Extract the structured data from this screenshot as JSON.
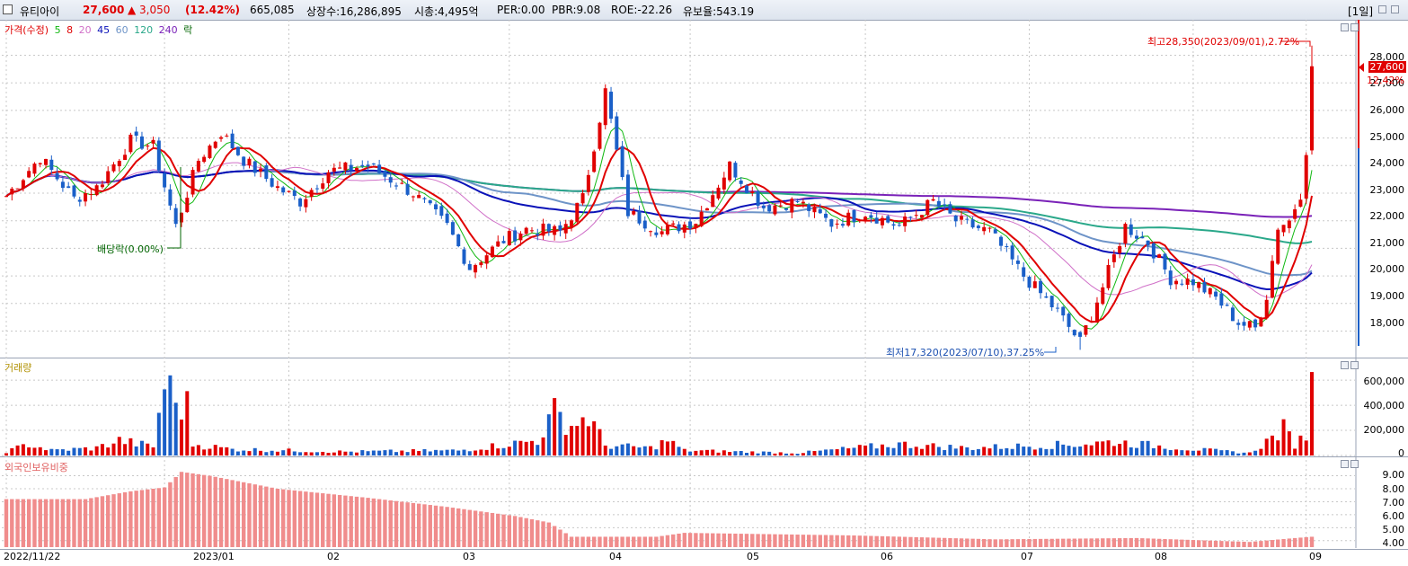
{
  "header": {
    "name": "유티아이",
    "price": "27,600",
    "change": "▲ 3,050",
    "change_pct": "(12.42%)",
    "volume": "665,085",
    "listed_shares": "상장수:16,286,895",
    "market_cap": "시총:4,495억",
    "per": "PER:0.00",
    "pbr": "PBR:9.08",
    "roe": "ROE:-22.26",
    "float_ratio": "유보율:543.19",
    "period": "[1일]"
  },
  "colors": {
    "up": "#e00000",
    "down": "#1a5fc8",
    "ma5": "#11b811",
    "ma8": "#e00000",
    "ma20": "#d070c8",
    "ma45": "#0a12b8",
    "ma60": "#6e94c8",
    "ma120": "#2aa88a",
    "ma240": "#7a22b8",
    "foreign": "#f08c8c"
  },
  "price_panel": {
    "legend": {
      "price": "가격(수정)",
      "ma5": "5",
      "ma8": "8",
      "ma20": "20",
      "ma45": "45",
      "ma60": "60",
      "ma120": "120",
      "ma240": "240",
      "fall": "락"
    },
    "y_ticks": [
      "28,000",
      "27,000",
      "26,000",
      "25,000",
      "24,000",
      "23,000",
      "22,000",
      "21,000",
      "20,000",
      "19,000",
      "18,000"
    ],
    "last_price_tag": "27,600",
    "last_pct_tag": "12.42%",
    "high_annotation": "최고28,350(2023/09/01),2.72%",
    "low_annotation": "최저17,320(2023/07/10),37.25%",
    "dividend_annotation": "배당락(0.00%)"
  },
  "volume_panel": {
    "legend": "거래량",
    "y_ticks": [
      "600,000",
      "400,000",
      "200,000",
      "0"
    ]
  },
  "foreign_panel": {
    "legend": "외국인보유비중",
    "y_ticks": [
      "9.00",
      "8.00",
      "7.00",
      "6.00",
      "5.00",
      "4.00"
    ]
  },
  "x_axis": [
    "2022/11/22",
    "2023/01",
    "02",
    "03",
    "04",
    "05",
    "06",
    "07",
    "08",
    "09"
  ],
  "chart_data": {
    "type": "candlestick",
    "title": "유티아이",
    "price_ylim": [
      17300,
      28700
    ],
    "volume_ylim": [
      0,
      680000
    ],
    "foreign_ylim": [
      3.5,
      9.8
    ],
    "anchors": [
      {
        "i": 0,
        "p": 22900
      },
      {
        "i": 6,
        "p": 24300
      },
      {
        "i": 12,
        "p": 22800
      },
      {
        "i": 16,
        "p": 23200
      },
      {
        "i": 22,
        "p": 24900
      },
      {
        "i": 26,
        "p": 24700
      },
      {
        "i": 30,
        "p": 21800
      },
      {
        "i": 34,
        "p": 24200
      },
      {
        "i": 38,
        "p": 25200
      },
      {
        "i": 42,
        "p": 24200
      },
      {
        "i": 48,
        "p": 23200
      },
      {
        "i": 52,
        "p": 22700
      },
      {
        "i": 57,
        "p": 23800
      },
      {
        "i": 64,
        "p": 24000
      },
      {
        "i": 72,
        "p": 23000
      },
      {
        "i": 78,
        "p": 21800
      },
      {
        "i": 82,
        "p": 20300
      },
      {
        "i": 88,
        "p": 21300
      },
      {
        "i": 92,
        "p": 21700
      },
      {
        "i": 98,
        "p": 21600
      },
      {
        "i": 102,
        "p": 22800
      },
      {
        "i": 106,
        "p": 26700
      },
      {
        "i": 110,
        "p": 22300
      },
      {
        "i": 116,
        "p": 21600
      },
      {
        "i": 122,
        "p": 22000
      },
      {
        "i": 128,
        "p": 24000
      },
      {
        "i": 134,
        "p": 22500
      },
      {
        "i": 140,
        "p": 22700
      },
      {
        "i": 146,
        "p": 21900
      },
      {
        "i": 152,
        "p": 22300
      },
      {
        "i": 158,
        "p": 21800
      },
      {
        "i": 164,
        "p": 22700
      },
      {
        "i": 168,
        "p": 22000
      },
      {
        "i": 174,
        "p": 21600
      },
      {
        "i": 180,
        "p": 20000
      },
      {
        "i": 186,
        "p": 18700
      },
      {
        "i": 190,
        "p": 17600
      },
      {
        "i": 194,
        "p": 19600
      },
      {
        "i": 198,
        "p": 21800
      },
      {
        "i": 202,
        "p": 21200
      },
      {
        "i": 206,
        "p": 19900
      },
      {
        "i": 210,
        "p": 19800
      },
      {
        "i": 214,
        "p": 19200
      },
      {
        "i": 218,
        "p": 18300
      },
      {
        "i": 221,
        "p": 18100
      },
      {
        "i": 223,
        "p": 19300
      },
      {
        "i": 225,
        "p": 21800
      },
      {
        "i": 227,
        "p": 22000
      },
      {
        "i": 229,
        "p": 23000
      },
      {
        "i": 230,
        "p": 24600
      },
      {
        "i": 231,
        "p": 27600
      }
    ],
    "volume_anchors": [
      {
        "i": 0,
        "v": 30000
      },
      {
        "i": 4,
        "v": 90000
      },
      {
        "i": 8,
        "v": 40000
      },
      {
        "i": 16,
        "v": 60000
      },
      {
        "i": 20,
        "v": 120000
      },
      {
        "i": 26,
        "v": 70000
      },
      {
        "i": 28,
        "v": 590000
      },
      {
        "i": 30,
        "v": 420000
      },
      {
        "i": 32,
        "v": 390000
      },
      {
        "i": 33,
        "v": 90000
      },
      {
        "i": 40,
        "v": 50000
      },
      {
        "i": 60,
        "v": 30000
      },
      {
        "i": 80,
        "v": 40000
      },
      {
        "i": 94,
        "v": 120000
      },
      {
        "i": 97,
        "v": 340000
      },
      {
        "i": 100,
        "v": 240000
      },
      {
        "i": 103,
        "v": 310000
      },
      {
        "i": 106,
        "v": 80000
      },
      {
        "i": 114,
        "v": 60000
      },
      {
        "i": 117,
        "v": 120000
      },
      {
        "i": 120,
        "v": 40000
      },
      {
        "i": 140,
        "v": 20000
      },
      {
        "i": 158,
        "v": 90000
      },
      {
        "i": 170,
        "v": 60000
      },
      {
        "i": 190,
        "v": 90000
      },
      {
        "i": 196,
        "v": 110000
      },
      {
        "i": 210,
        "v": 50000
      },
      {
        "i": 220,
        "v": 20000
      },
      {
        "i": 224,
        "v": 140000
      },
      {
        "i": 226,
        "v": 210000
      },
      {
        "i": 228,
        "v": 90000
      },
      {
        "i": 230,
        "v": 160000
      },
      {
        "i": 231,
        "v": 665085
      }
    ],
    "foreign_anchors": [
      {
        "i": 0,
        "v": 7.2
      },
      {
        "i": 14,
        "v": 7.2
      },
      {
        "i": 22,
        "v": 7.8
      },
      {
        "i": 28,
        "v": 8.1
      },
      {
        "i": 31,
        "v": 9.3
      },
      {
        "i": 36,
        "v": 9.0
      },
      {
        "i": 48,
        "v": 8.0
      },
      {
        "i": 64,
        "v": 7.3
      },
      {
        "i": 78,
        "v": 6.6
      },
      {
        "i": 90,
        "v": 5.9
      },
      {
        "i": 96,
        "v": 5.4
      },
      {
        "i": 100,
        "v": 4.3
      },
      {
        "i": 115,
        "v": 4.3
      },
      {
        "i": 120,
        "v": 4.6
      },
      {
        "i": 150,
        "v": 4.4
      },
      {
        "i": 175,
        "v": 4.1
      },
      {
        "i": 200,
        "v": 4.2
      },
      {
        "i": 220,
        "v": 3.9
      },
      {
        "i": 228,
        "v": 4.2
      },
      {
        "i": 231,
        "v": 4.3
      }
    ],
    "count": 232,
    "high": {
      "value": 28350,
      "date": "2023/09/01"
    },
    "low": {
      "value": 17320,
      "date": "2023/07/10"
    }
  }
}
